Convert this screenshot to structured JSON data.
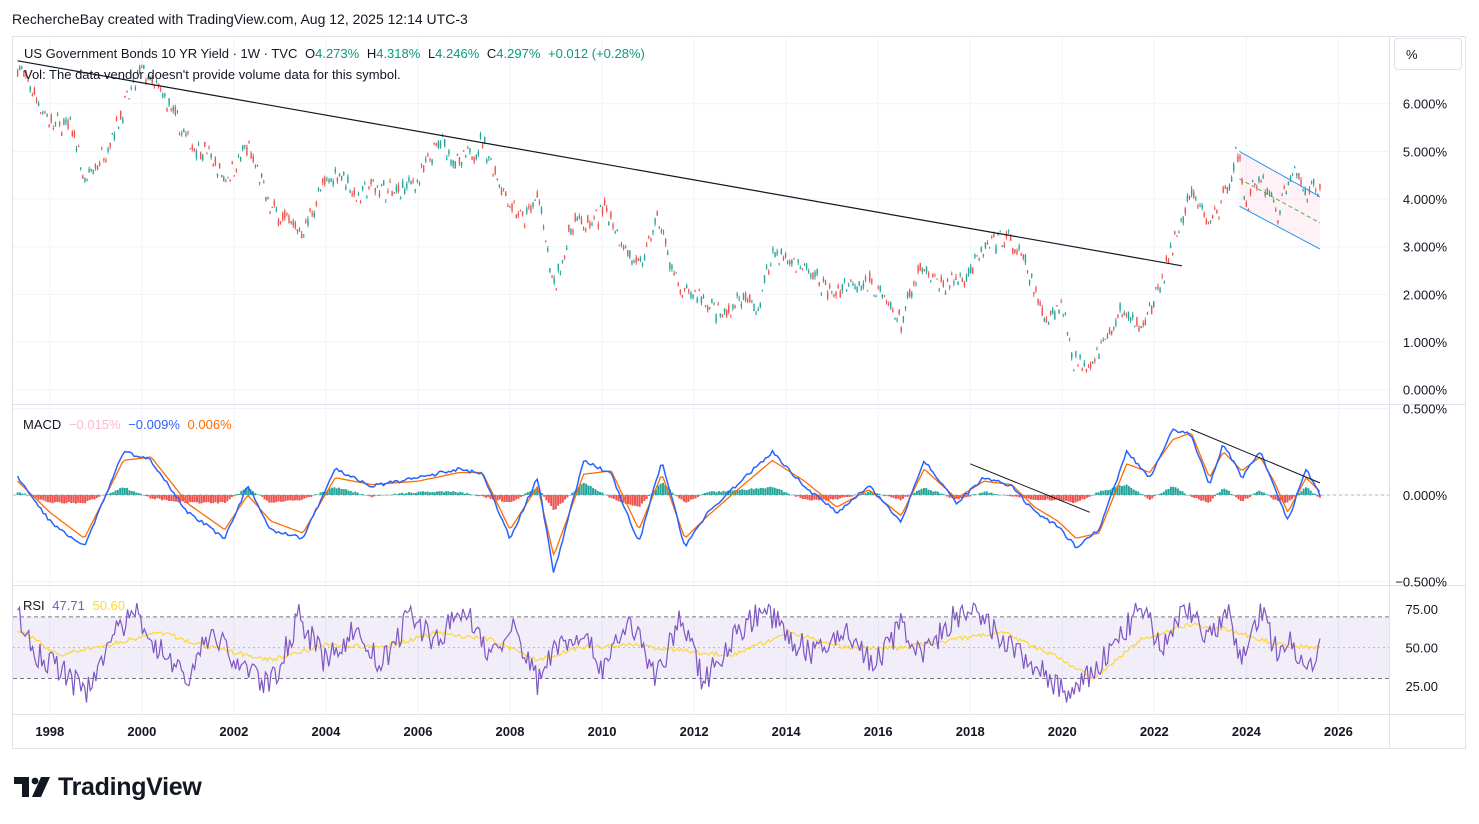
{
  "header": {
    "attribution": "RechercheBay created with TradingView.com, Aug 12, 2025 12:14 UTC-3"
  },
  "scale_button": {
    "label": "%"
  },
  "legend": {
    "symbol": "US Government Bonds 10 YR Yield · 1W · TVC",
    "o_label": "O",
    "o_value": "4.273%",
    "h_label": "H",
    "h_value": "4.318%",
    "l_label": "L",
    "l_value": "4.246%",
    "c_label": "C",
    "c_value": "4.297%",
    "change": "+0.012 (+0.28%)",
    "vol_note": "Vol: The data vendor doesn't provide volume data for this symbol."
  },
  "macd_legend": {
    "name": "MACD",
    "hist": "−0.015%",
    "macd": "−0.009%",
    "signal": "0.006%"
  },
  "rsi_legend": {
    "name": "RSI",
    "rsi": "47.71",
    "ma": "50.60"
  },
  "logo": {
    "text": "TradingView"
  },
  "colors": {
    "up": "#26a69a",
    "down": "#ef5350",
    "macd_line": "#2962ff",
    "signal_line": "#ff6d00",
    "rsi_line": "#7e57c2",
    "rsi_ma": "#fdd835",
    "channel": "#2196f3",
    "trend": "#131722",
    "text": "#131722"
  },
  "chart_data": [
    {
      "type": "line",
      "title": "US Government Bonds 10 YR Yield",
      "ylabel": "%",
      "x_ticks": [
        "1998",
        "2000",
        "2002",
        "2004",
        "2006",
        "2008",
        "2010",
        "2012",
        "2014",
        "2016",
        "2018",
        "2020",
        "2022",
        "2024",
        "2026"
      ],
      "y_ticks": [
        "0.000%",
        "1.000%",
        "2.000%",
        "3.000%",
        "4.000%",
        "5.000%",
        "6.000%"
      ],
      "ylim": [
        -0.3,
        7.4
      ],
      "xlim": [
        1997.2,
        2027.1
      ],
      "series": [
        {
          "name": "",
          "x": [
            1997.3,
            1997.6,
            1998.0,
            1998.5,
            1998.75,
            1999.2,
            1999.6,
            2000.0,
            2000.5,
            2001.0,
            2001.4,
            2001.8,
            2002.3,
            2002.8,
            2003.5,
            2003.9,
            2004.3,
            2004.7,
            2005.0,
            2005.5,
            2006.0,
            2006.5,
            2006.9,
            2007.4,
            2007.9,
            2008.3,
            2008.6,
            2008.95,
            2009.4,
            2009.7,
            2010.1,
            2010.5,
            2010.8,
            2011.2,
            2011.7,
            2012.1,
            2012.6,
            2013.0,
            2013.4,
            2013.7,
            2014.1,
            2014.6,
            2015.0,
            2015.4,
            2015.9,
            2016.5,
            2016.9,
            2017.4,
            2017.9,
            2018.3,
            2018.8,
            2019.2,
            2019.6,
            2020.0,
            2020.25,
            2020.6,
            2021.0,
            2021.3,
            2021.6,
            2022.0,
            2022.4,
            2022.8,
            2023.2,
            2023.5,
            2023.8,
            2024.0,
            2024.3,
            2024.7,
            2025.0,
            2025.3,
            2025.6
          ],
          "values": [
            6.8,
            6.3,
            5.6,
            5.5,
            4.3,
            5.0,
            5.9,
            6.7,
            6.1,
            5.2,
            5.0,
            4.4,
            5.1,
            3.8,
            3.3,
            4.2,
            4.6,
            4.0,
            4.3,
            4.1,
            4.4,
            5.2,
            4.7,
            5.2,
            4.1,
            3.5,
            4.1,
            2.1,
            3.6,
            3.4,
            3.8,
            3.0,
            2.5,
            3.6,
            2.0,
            2.0,
            1.5,
            1.9,
            1.7,
            2.9,
            2.7,
            2.4,
            2.0,
            2.3,
            2.2,
            1.4,
            2.5,
            2.2,
            2.4,
            2.9,
            3.2,
            2.6,
            1.5,
            1.8,
            0.6,
            0.6,
            1.1,
            1.7,
            1.3,
            1.8,
            3.0,
            4.1,
            3.5,
            4.0,
            5.0,
            3.9,
            4.5,
            3.7,
            4.6,
            4.2,
            4.3
          ]
        }
      ],
      "annotations": {
        "trendline_from": [
          1997.3,
          6.9
        ],
        "trendline_to": [
          2022.6,
          2.6
        ],
        "channel_years": [
          2023.85,
          2025.6
        ]
      }
    },
    {
      "type": "line",
      "title": "MACD",
      "y_ticks": [
        "0.500%",
        "0.000%",
        "−0.500%"
      ],
      "ylim": [
        -0.52,
        0.52
      ],
      "series": [
        {
          "name": "MACD",
          "x": [
            1997.3,
            1998.0,
            1998.75,
            1999.6,
            2000.2,
            2001.0,
            2001.8,
            2002.3,
            2002.8,
            2003.5,
            2004.2,
            2005.0,
            2006.0,
            2006.9,
            2007.4,
            2008.0,
            2008.6,
            2008.95,
            2009.6,
            2010.2,
            2010.8,
            2011.3,
            2011.8,
            2012.3,
            2012.9,
            2013.7,
            2014.4,
            2015.1,
            2015.8,
            2016.5,
            2017.0,
            2017.7,
            2018.3,
            2018.9,
            2019.4,
            2019.9,
            2020.3,
            2020.8,
            2021.4,
            2021.9,
            2022.4,
            2022.8,
            2023.2,
            2023.5,
            2023.9,
            2024.3,
            2024.6,
            2024.9,
            2025.3,
            2025.6
          ],
          "values": [
            0.1,
            -0.15,
            -0.3,
            0.25,
            0.2,
            -0.1,
            -0.25,
            0.05,
            -0.2,
            -0.25,
            0.15,
            0.05,
            0.1,
            0.15,
            0.12,
            -0.25,
            0.1,
            -0.45,
            0.2,
            0.12,
            -0.28,
            0.2,
            -0.3,
            -0.1,
            0.05,
            0.25,
            0.05,
            -0.1,
            0.05,
            -0.15,
            0.2,
            -0.05,
            0.1,
            0.05,
            -0.1,
            -0.18,
            -0.3,
            -0.2,
            0.25,
            0.1,
            0.38,
            0.35,
            0.05,
            0.3,
            0.1,
            0.25,
            0.05,
            -0.15,
            0.15,
            0.0
          ]
        },
        {
          "name": "Signal",
          "x": [
            1997.3,
            1998.0,
            1998.75,
            1999.6,
            2000.2,
            2001.0,
            2001.8,
            2002.3,
            2002.8,
            2003.5,
            2004.2,
            2005.0,
            2006.0,
            2006.9,
            2007.4,
            2008.0,
            2008.6,
            2008.95,
            2009.6,
            2010.2,
            2010.8,
            2011.3,
            2011.8,
            2012.3,
            2012.9,
            2013.7,
            2014.4,
            2015.1,
            2015.8,
            2016.5,
            2017.0,
            2017.7,
            2018.3,
            2018.9,
            2019.4,
            2019.9,
            2020.3,
            2020.8,
            2021.4,
            2021.9,
            2022.4,
            2022.8,
            2023.2,
            2023.5,
            2023.9,
            2024.3,
            2024.6,
            2024.9,
            2025.3,
            2025.6
          ],
          "values": [
            0.08,
            -0.1,
            -0.25,
            0.2,
            0.22,
            -0.05,
            -0.2,
            0.0,
            -0.15,
            -0.22,
            0.1,
            0.06,
            0.08,
            0.13,
            0.13,
            -0.2,
            0.05,
            -0.35,
            0.12,
            0.14,
            -0.2,
            0.12,
            -0.25,
            -0.12,
            0.02,
            0.2,
            0.08,
            -0.07,
            0.03,
            -0.12,
            0.15,
            -0.02,
            0.08,
            0.06,
            -0.07,
            -0.15,
            -0.25,
            -0.22,
            0.18,
            0.13,
            0.32,
            0.36,
            0.1,
            0.25,
            0.14,
            0.22,
            0.08,
            -0.1,
            0.1,
            0.02
          ]
        }
      ]
    },
    {
      "type": "line",
      "title": "RSI",
      "y_ticks": [
        "75.00",
        "50.00",
        "25.00"
      ],
      "ylim": [
        7,
        90
      ],
      "bands": [
        30,
        70
      ],
      "series": [
        {
          "name": "RSI",
          "x": [
            1997.3,
            1997.7,
            1998.2,
            1998.75,
            1999.3,
            1999.9,
            2000.4,
            2001.0,
            2001.5,
            2002.0,
            2002.8,
            2003.4,
            2004.0,
            2004.6,
            2005.2,
            2005.8,
            2006.4,
            2007.0,
            2007.6,
            2008.1,
            2008.6,
            2008.95,
            2009.5,
            2010.0,
            2010.6,
            2011.2,
            2011.7,
            2012.2,
            2012.8,
            2013.5,
            2014.1,
            2014.7,
            2015.3,
            2015.9,
            2016.5,
            2017.0,
            2017.6,
            2018.1,
            2018.7,
            2019.3,
            2019.8,
            2020.2,
            2020.7,
            2021.2,
            2021.7,
            2022.2,
            2022.7,
            2023.2,
            2023.6,
            2023.9,
            2024.3,
            2024.7,
            2025.0,
            2025.3,
            2025.6
          ],
          "values": [
            70,
            45,
            38,
            20,
            55,
            72,
            48,
            30,
            62,
            42,
            25,
            70,
            40,
            62,
            38,
            70,
            55,
            75,
            45,
            62,
            28,
            50,
            60,
            38,
            68,
            30,
            70,
            28,
            55,
            76,
            55,
            45,
            62,
            38,
            65,
            45,
            68,
            72,
            55,
            40,
            28,
            18,
            35,
            55,
            75,
            50,
            78,
            55,
            72,
            40,
            75,
            45,
            55,
            38,
            48
          ]
        },
        {
          "name": "RSI-based MA",
          "x": [
            1997.3,
            1998.2,
            1999.3,
            2000.4,
            2001.5,
            2002.8,
            2004.0,
            2005.2,
            2006.4,
            2007.6,
            2008.6,
            2009.5,
            2010.6,
            2011.7,
            2012.8,
            2014.1,
            2015.3,
            2016.5,
            2017.6,
            2018.7,
            2019.8,
            2020.7,
            2021.7,
            2022.7,
            2023.6,
            2024.7,
            2025.6
          ],
          "values": [
            62,
            45,
            52,
            60,
            50,
            42,
            52,
            50,
            60,
            55,
            42,
            50,
            52,
            48,
            45,
            60,
            50,
            50,
            55,
            60,
            45,
            30,
            55,
            65,
            62,
            52,
            50
          ]
        }
      ]
    }
  ]
}
